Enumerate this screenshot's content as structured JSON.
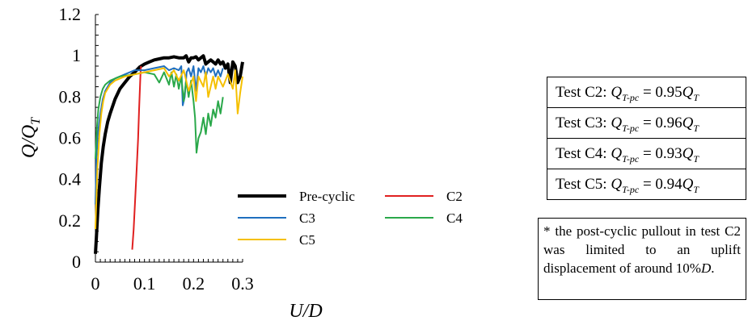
{
  "chart_data": {
    "type": "line",
    "xlabel": "U/D",
    "ylabel": "Q/Q_T",
    "xlim": [
      0,
      0.3
    ],
    "ylim": [
      0,
      1.2
    ],
    "xticks": [
      "0",
      "0.1",
      "0.2",
      "0.3"
    ],
    "yticks": [
      "0",
      "0.2",
      "0.4",
      "0.6",
      "0.8",
      "1",
      "1.2"
    ],
    "grid": false,
    "legend_position": "lower-center",
    "series": [
      {
        "name": "Pre-cyclic",
        "color": "#000000",
        "points": [
          [
            0,
            0.04
          ],
          [
            0.002,
            0.12
          ],
          [
            0.005,
            0.25
          ],
          [
            0.008,
            0.36
          ],
          [
            0.012,
            0.48
          ],
          [
            0.016,
            0.56
          ],
          [
            0.02,
            0.62
          ],
          [
            0.025,
            0.68
          ],
          [
            0.03,
            0.72
          ],
          [
            0.04,
            0.79
          ],
          [
            0.05,
            0.84
          ],
          [
            0.06,
            0.87
          ],
          [
            0.07,
            0.9
          ],
          [
            0.08,
            0.92
          ],
          [
            0.09,
            0.945
          ],
          [
            0.1,
            0.96
          ],
          [
            0.11,
            0.97
          ],
          [
            0.12,
            0.98
          ],
          [
            0.13,
            0.985
          ],
          [
            0.14,
            0.99
          ],
          [
            0.15,
            0.99
          ],
          [
            0.16,
            0.995
          ],
          [
            0.17,
            0.99
          ],
          [
            0.18,
            0.99
          ],
          [
            0.185,
            1.0
          ],
          [
            0.19,
            0.97
          ],
          [
            0.195,
            0.99
          ],
          [
            0.2,
            0.99
          ],
          [
            0.205,
            0.995
          ],
          [
            0.21,
            0.98
          ],
          [
            0.215,
            0.99
          ],
          [
            0.22,
            1.0
          ],
          [
            0.225,
            0.96
          ],
          [
            0.23,
            0.97
          ],
          [
            0.235,
            0.98
          ],
          [
            0.24,
            0.97
          ],
          [
            0.245,
            0.96
          ],
          [
            0.25,
            0.98
          ],
          [
            0.255,
            0.96
          ],
          [
            0.26,
            0.97
          ],
          [
            0.265,
            0.94
          ],
          [
            0.27,
            0.96
          ],
          [
            0.275,
            0.87
          ],
          [
            0.28,
            0.97
          ],
          [
            0.285,
            0.95
          ],
          [
            0.29,
            0.87
          ],
          [
            0.295,
            0.9
          ],
          [
            0.3,
            0.97
          ]
        ]
      },
      {
        "name": "C2",
        "color": "#e02020",
        "points": [
          [
            0.075,
            0.06
          ],
          [
            0.078,
            0.16
          ],
          [
            0.081,
            0.3
          ],
          [
            0.084,
            0.45
          ],
          [
            0.087,
            0.6
          ],
          [
            0.089,
            0.74
          ],
          [
            0.091,
            0.86
          ],
          [
            0.092,
            0.92
          ],
          [
            0.093,
            0.95
          ]
        ]
      },
      {
        "name": "C3",
        "color": "#1f6fbf",
        "points": [
          [
            0,
            0.28
          ],
          [
            0.002,
            0.5
          ],
          [
            0.005,
            0.62
          ],
          [
            0.01,
            0.72
          ],
          [
            0.015,
            0.79
          ],
          [
            0.02,
            0.83
          ],
          [
            0.03,
            0.87
          ],
          [
            0.04,
            0.89
          ],
          [
            0.06,
            0.91
          ],
          [
            0.08,
            0.93
          ],
          [
            0.1,
            0.93
          ],
          [
            0.12,
            0.94
          ],
          [
            0.14,
            0.95
          ],
          [
            0.15,
            0.93
          ],
          [
            0.16,
            0.94
          ],
          [
            0.17,
            0.93
          ],
          [
            0.175,
            0.95
          ],
          [
            0.178,
            0.76
          ],
          [
            0.182,
            0.8
          ],
          [
            0.186,
            0.92
          ],
          [
            0.19,
            0.94
          ],
          [
            0.195,
            0.9
          ],
          [
            0.2,
            0.95
          ],
          [
            0.205,
            0.83
          ],
          [
            0.21,
            0.94
          ],
          [
            0.215,
            0.92
          ],
          [
            0.22,
            0.95
          ],
          [
            0.225,
            0.9
          ],
          [
            0.23,
            0.94
          ],
          [
            0.235,
            0.92
          ],
          [
            0.24,
            0.94
          ],
          [
            0.245,
            0.9
          ],
          [
            0.25,
            0.93
          ],
          [
            0.255,
            0.9
          ],
          [
            0.26,
            0.94
          ]
        ]
      },
      {
        "name": "C4",
        "color": "#2aa84a",
        "points": [
          [
            0,
            0.5
          ],
          [
            0.003,
            0.65
          ],
          [
            0.006,
            0.74
          ],
          [
            0.01,
            0.8
          ],
          [
            0.015,
            0.84
          ],
          [
            0.02,
            0.86
          ],
          [
            0.03,
            0.88
          ],
          [
            0.05,
            0.9
          ],
          [
            0.08,
            0.91
          ],
          [
            0.1,
            0.92
          ],
          [
            0.12,
            0.91
          ],
          [
            0.13,
            0.87
          ],
          [
            0.14,
            0.92
          ],
          [
            0.15,
            0.86
          ],
          [
            0.155,
            0.92
          ],
          [
            0.16,
            0.85
          ],
          [
            0.165,
            0.91
          ],
          [
            0.17,
            0.84
          ],
          [
            0.175,
            0.9
          ],
          [
            0.18,
            0.78
          ],
          [
            0.185,
            0.88
          ],
          [
            0.19,
            0.8
          ],
          [
            0.195,
            0.88
          ],
          [
            0.2,
            0.78
          ],
          [
            0.203,
            0.7
          ],
          [
            0.206,
            0.53
          ],
          [
            0.21,
            0.6
          ],
          [
            0.215,
            0.63
          ],
          [
            0.22,
            0.7
          ],
          [
            0.225,
            0.62
          ],
          [
            0.23,
            0.72
          ],
          [
            0.235,
            0.66
          ],
          [
            0.24,
            0.74
          ],
          [
            0.245,
            0.7
          ],
          [
            0.25,
            0.78
          ],
          [
            0.255,
            0.72
          ],
          [
            0.26,
            0.8
          ]
        ]
      },
      {
        "name": "C5",
        "color": "#f5c000",
        "points": [
          [
            0,
            0.16
          ],
          [
            0.004,
            0.45
          ],
          [
            0.008,
            0.62
          ],
          [
            0.012,
            0.72
          ],
          [
            0.016,
            0.78
          ],
          [
            0.02,
            0.82
          ],
          [
            0.03,
            0.86
          ],
          [
            0.04,
            0.88
          ],
          [
            0.06,
            0.9
          ],
          [
            0.08,
            0.91
          ],
          [
            0.1,
            0.92
          ],
          [
            0.12,
            0.93
          ],
          [
            0.14,
            0.94
          ],
          [
            0.15,
            0.9
          ],
          [
            0.16,
            0.93
          ],
          [
            0.17,
            0.88
          ],
          [
            0.18,
            0.93
          ],
          [
            0.19,
            0.83
          ],
          [
            0.2,
            0.9
          ],
          [
            0.205,
            0.78
          ],
          [
            0.21,
            0.9
          ],
          [
            0.22,
            0.85
          ],
          [
            0.225,
            0.92
          ],
          [
            0.23,
            0.8
          ],
          [
            0.24,
            0.9
          ],
          [
            0.245,
            0.84
          ],
          [
            0.25,
            0.9
          ],
          [
            0.26,
            0.85
          ],
          [
            0.27,
            0.91
          ],
          [
            0.28,
            0.84
          ],
          [
            0.285,
            0.93
          ],
          [
            0.29,
            0.72
          ],
          [
            0.295,
            0.82
          ],
          [
            0.3,
            0.9
          ]
        ]
      }
    ]
  },
  "results_box": {
    "rows": [
      {
        "prefix": "Test C2: ",
        "value": "0.95"
      },
      {
        "prefix": "Test C3: ",
        "value": "0.96"
      },
      {
        "prefix": "Test C4: ",
        "value": "0.93"
      },
      {
        "prefix": "Test C5: ",
        "value": "0.94"
      }
    ]
  },
  "note": {
    "text": "* the post-cyclic pullout in test C2 was limited to an uplift displacement of around 10%",
    "italic_suffix": "D",
    "end": "."
  }
}
